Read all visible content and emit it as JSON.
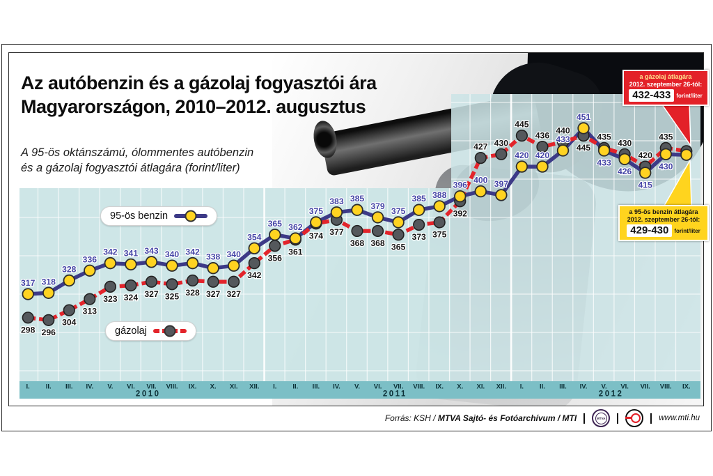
{
  "page": {
    "title_line1": "Az autóbenzin és a gázolaj fogyasztói ára",
    "title_line2": "Magyarországon, 2010–2012. augusztus",
    "subtitle_line1": "A 95-ös oktánszámú, ólommentes autóbenzin",
    "subtitle_line2": "és a gázolaj fogyasztói átlagára (forint/liter)"
  },
  "legend": {
    "benzin_label": "95-ös benzin",
    "gazolaj_label": "gázolaj"
  },
  "callouts": {
    "gazolaj": {
      "line1": "a gázolaj átlagára",
      "line2": "2012. szeptember 26-tól:",
      "value": "432-433",
      "unit": "forint/liter"
    },
    "benzin": {
      "line1": "a 95-ös benzin átlagára",
      "line2": "2012. szeptember 26-tól:",
      "value": "429-430",
      "unit": "forint/liter"
    }
  },
  "footer": {
    "source_prefix": "Forrás: KSH / ",
    "source_bold": "MTVA Sajtó- és Fotóarchívum / MTI",
    "mtva_logo": "MTVA",
    "website": "www.mti.hu"
  },
  "colors": {
    "benzin_line": "#3d3a87",
    "benzin_dot": "#ffd321",
    "benzin_label": "#4545a6",
    "gazolaj_line": "#e3242b",
    "gazolaj_dot": "#54585c",
    "gazolaj_label": "#161616",
    "panel": "#cbe4e6",
    "axis_strip": "#7cbfc6",
    "tick_text": "#0d3138",
    "grid": "#ffffff"
  },
  "chart_data": {
    "type": "line",
    "title": "Az autóbenzin és a gázolaj fogyasztói ára Magyarországon, 2010–2012. augusztus",
    "ylabel": "forint/liter",
    "value_range": [
      290,
      460
    ],
    "grid": true,
    "categories": [
      "I.",
      "II.",
      "III.",
      "IV.",
      "V.",
      "VI.",
      "VII.",
      "VIII.",
      "IX.",
      "X.",
      "XI.",
      "XII.",
      "I.",
      "II.",
      "III.",
      "IV.",
      "V.",
      "VI.",
      "VII.",
      "VIII.",
      "IX.",
      "X.",
      "XI.",
      "XII.",
      "I.",
      "II.",
      "III.",
      "IV.",
      "V.",
      "VI.",
      "VII.",
      "VIII.",
      "IX."
    ],
    "years": [
      {
        "label": "2010",
        "span": [
          0,
          11
        ]
      },
      {
        "label": "2011",
        "span": [
          12,
          23
        ]
      },
      {
        "label": "2012",
        "span": [
          24,
          32
        ]
      }
    ],
    "series": [
      {
        "name": "95-ös benzin",
        "values": [
          317,
          318,
          328,
          336,
          342,
          341,
          343,
          340,
          342,
          338,
          340,
          354,
          365,
          362,
          375,
          383,
          385,
          379,
          375,
          385,
          388,
          396,
          400,
          397,
          420,
          420,
          433,
          451,
          433,
          426,
          415,
          430,
          429.5
        ],
        "label_pos": [
          "above",
          "above",
          "above",
          "above",
          "above",
          "above",
          "above",
          "above",
          "above",
          "above",
          "above",
          "above",
          "above",
          "above",
          "above",
          "above",
          "above",
          "above",
          "above",
          "above",
          "above",
          "above",
          "above",
          "above",
          "above",
          "above",
          "above",
          "above",
          "below",
          "below",
          "below",
          "below",
          null
        ]
      },
      {
        "name": "gázolaj",
        "values": [
          298,
          296,
          304,
          313,
          323,
          324,
          327,
          325,
          328,
          327,
          327,
          342,
          356,
          361,
          374,
          377,
          368,
          368,
          365,
          373,
          375,
          392,
          427,
          430,
          445,
          436,
          440,
          445,
          435,
          430,
          420,
          435,
          432.5
        ],
        "label_pos": [
          "below",
          "below",
          "below",
          "below",
          "below",
          "below",
          "below",
          "below",
          "below",
          "below",
          "below",
          "below",
          "below",
          "below",
          "below",
          "below",
          "below",
          "below",
          "below",
          "below",
          "below",
          "below",
          "above",
          "above",
          "above",
          "above",
          "above",
          "below",
          "above",
          "above",
          "above",
          "above",
          null
        ]
      }
    ]
  }
}
